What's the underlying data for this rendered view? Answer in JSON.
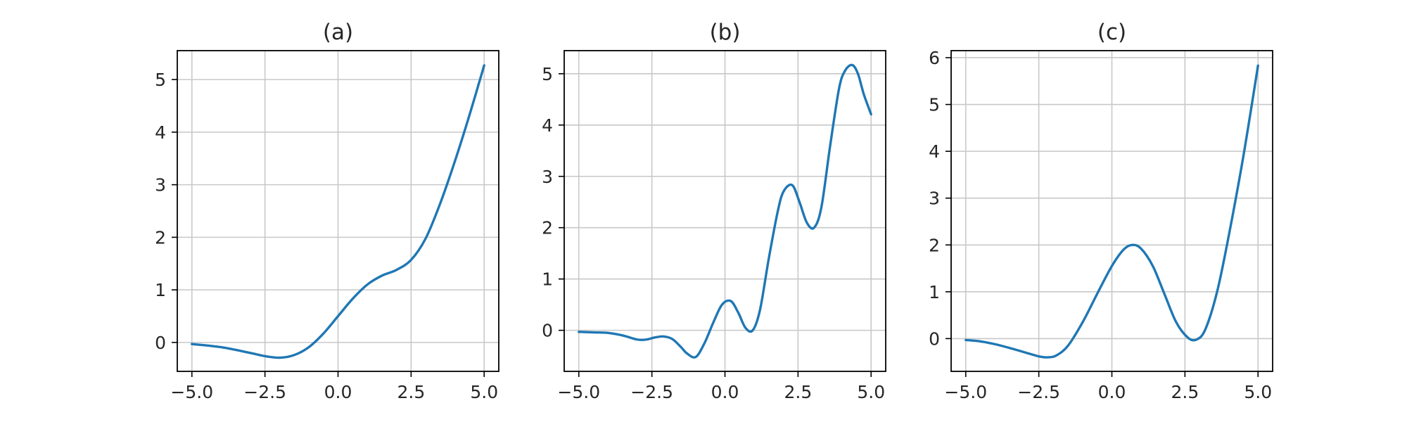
{
  "figure": {
    "background": "#ffffff",
    "line_color": "#1f77b4"
  },
  "chart_data": [
    {
      "type": "line",
      "title": "(a)",
      "xlabel": "",
      "ylabel": "",
      "xlim": [
        -5.5,
        5.5
      ],
      "ylim": [
        -0.55,
        5.55
      ],
      "xticks": [
        -5.0,
        -2.5,
        0.0,
        2.5,
        5.0
      ],
      "xtick_labels": [
        "−5.0",
        "−2.5",
        "0.0",
        "2.5",
        "5.0"
      ],
      "yticks": [
        0,
        1,
        2,
        3,
        4,
        5
      ],
      "ytick_labels": [
        "0",
        "1",
        "2",
        "3",
        "4",
        "5"
      ],
      "grid": true,
      "series": [
        {
          "x": [
            -5.0,
            -4.0,
            -3.0,
            -2.5,
            -2.0,
            -1.5,
            -1.0,
            -0.5,
            0.0,
            0.5,
            1.0,
            1.5,
            2.0,
            2.5,
            3.0,
            3.5,
            4.0,
            4.5,
            5.0
          ],
          "y": [
            -0.03,
            -0.09,
            -0.2,
            -0.26,
            -0.29,
            -0.24,
            -0.09,
            0.17,
            0.5,
            0.83,
            1.1,
            1.27,
            1.38,
            1.57,
            1.98,
            2.65,
            3.45,
            4.33,
            5.27
          ]
        }
      ]
    },
    {
      "type": "line",
      "title": "(b)",
      "xlabel": "",
      "ylabel": "",
      "xlim": [
        -5.5,
        5.5
      ],
      "ylim": [
        -0.8,
        5.45
      ],
      "xticks": [
        -5.0,
        -2.5,
        0.0,
        2.5,
        5.0
      ],
      "xtick_labels": [
        "−5.0",
        "−2.5",
        "0.0",
        "2.5",
        "5.0"
      ],
      "yticks": [
        0,
        1,
        2,
        3,
        4,
        5
      ],
      "ytick_labels": [
        "0",
        "1",
        "2",
        "3",
        "4",
        "5"
      ],
      "grid": true,
      "series": [
        {
          "x": [
            -5.0,
            -4.5,
            -4.0,
            -3.5,
            -3.0,
            -2.7,
            -2.4,
            -2.1,
            -1.8,
            -1.5,
            -1.3,
            -1.0,
            -0.7,
            -0.4,
            -0.1,
            0.2,
            0.45,
            0.7,
            0.95,
            1.2,
            1.5,
            1.8,
            2.0,
            2.3,
            2.55,
            2.8,
            3.05,
            3.3,
            3.6,
            3.9,
            4.1,
            4.35,
            4.55,
            4.75,
            5.0
          ],
          "y": [
            -0.03,
            -0.04,
            -0.05,
            -0.1,
            -0.18,
            -0.18,
            -0.14,
            -0.12,
            -0.17,
            -0.33,
            -0.45,
            -0.52,
            -0.25,
            0.15,
            0.5,
            0.57,
            0.35,
            0.05,
            0.0,
            0.4,
            1.4,
            2.3,
            2.7,
            2.83,
            2.5,
            2.1,
            2.0,
            2.4,
            3.6,
            4.7,
            5.05,
            5.17,
            5.0,
            4.6,
            4.21
          ]
        }
      ]
    },
    {
      "type": "line",
      "title": "(c)",
      "xlabel": "",
      "ylabel": "",
      "xlim": [
        -5.5,
        5.5
      ],
      "ylim": [
        -0.7,
        6.15
      ],
      "xticks": [
        -5.0,
        -2.5,
        0.0,
        2.5,
        5.0
      ],
      "xtick_labels": [
        "−5.0",
        "−2.5",
        "0.0",
        "2.5",
        "5.0"
      ],
      "yticks": [
        0,
        1,
        2,
        3,
        4,
        5,
        6
      ],
      "ytick_labels": [
        "0",
        "1",
        "2",
        "3",
        "4",
        "5",
        "6"
      ],
      "grid": true,
      "series": [
        {
          "x": [
            -5.0,
            -4.5,
            -4.0,
            -3.5,
            -3.0,
            -2.5,
            -2.2,
            -1.9,
            -1.5,
            -1.0,
            -0.5,
            0.0,
            0.4,
            0.7,
            1.0,
            1.4,
            1.8,
            2.2,
            2.6,
            2.9,
            3.2,
            3.6,
            4.0,
            4.5,
            5.0
          ],
          "y": [
            -0.03,
            -0.06,
            -0.12,
            -0.2,
            -0.29,
            -0.38,
            -0.4,
            -0.36,
            -0.15,
            0.35,
            0.96,
            1.55,
            1.9,
            2.0,
            1.92,
            1.55,
            0.95,
            0.35,
            0.02,
            -0.02,
            0.2,
            1.0,
            2.2,
            3.9,
            5.83
          ]
        }
      ]
    }
  ]
}
